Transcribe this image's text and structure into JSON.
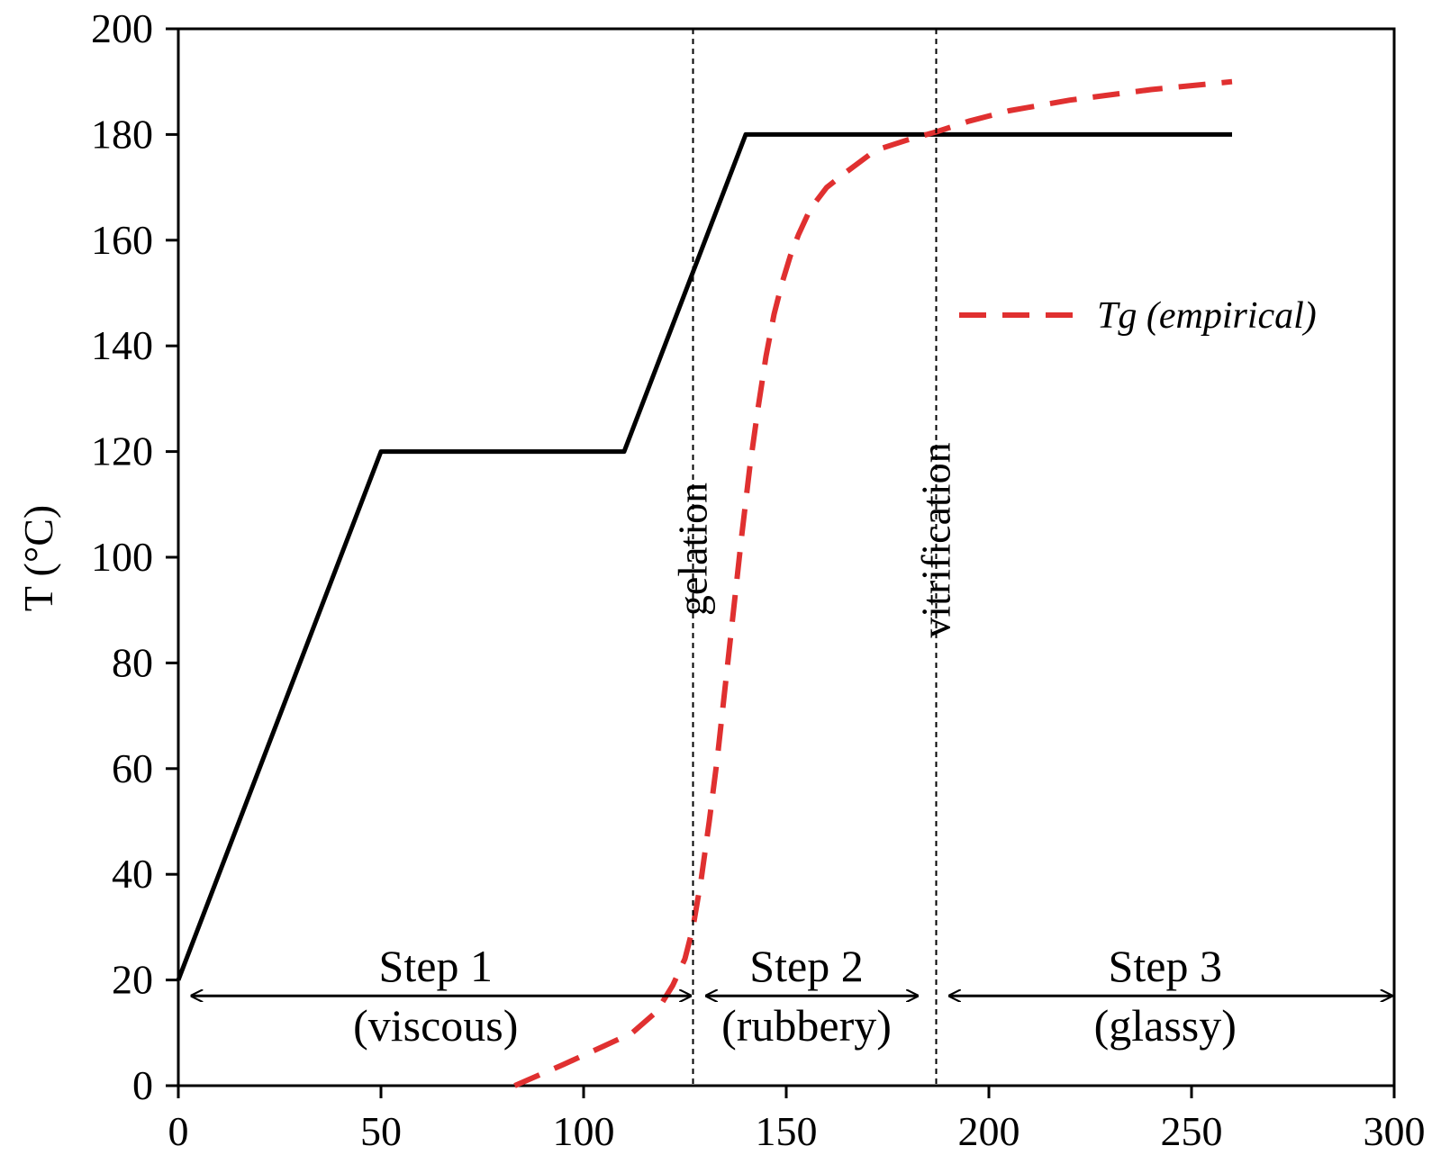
{
  "chart_data": {
    "type": "line",
    "title": "",
    "xlabel": "",
    "ylabel": "T (°C)",
    "xlim": [
      0,
      300
    ],
    "ylim": [
      0,
      200
    ],
    "xticks": [
      0,
      50,
      100,
      150,
      200,
      250,
      300
    ],
    "yticks": [
      0,
      20,
      40,
      60,
      80,
      100,
      120,
      140,
      160,
      180,
      200
    ],
    "grid": false,
    "legend_position": "top-right",
    "series": [
      {
        "name": "",
        "color": "#000000",
        "style": "solid",
        "x": [
          0,
          50,
          110,
          140,
          260
        ],
        "y": [
          20,
          120,
          120,
          180,
          180
        ]
      },
      {
        "name": "Tg (empirical)",
        "color": "#e03030",
        "style": "dashed",
        "x": [
          83,
          95,
          105,
          112,
          118,
          122,
          125,
          127,
          129,
          131,
          133,
          135,
          137,
          139,
          141,
          143,
          145,
          147,
          149,
          151,
          153,
          156,
          160,
          165,
          172,
          180,
          187,
          195,
          205,
          220,
          240,
          260
        ],
        "y": [
          0,
          4,
          7.5,
          10,
          14,
          19,
          24,
          30,
          39,
          50,
          62,
          76,
          90,
          104,
          117,
          128,
          138,
          146,
          152,
          157,
          161,
          166,
          170,
          173,
          177,
          179,
          180.5,
          182.5,
          184.5,
          186.5,
          188.5,
          190
        ]
      }
    ],
    "vertical_lines": [
      {
        "x": 127,
        "label": "gelation"
      },
      {
        "x": 187,
        "label": "vitrification"
      }
    ],
    "steps": [
      {
        "label": "Step 1",
        "sublabel": "(viscous)",
        "x_start": 0,
        "x_end": 127,
        "y": 17
      },
      {
        "label": "Step 2",
        "sublabel": "(rubbery)",
        "x_start": 127,
        "x_end": 183,
        "y": 17
      },
      {
        "label": "Step 3",
        "sublabel": "(glassy)",
        "x_start": 187,
        "x_end": 300,
        "y": 17
      }
    ]
  }
}
